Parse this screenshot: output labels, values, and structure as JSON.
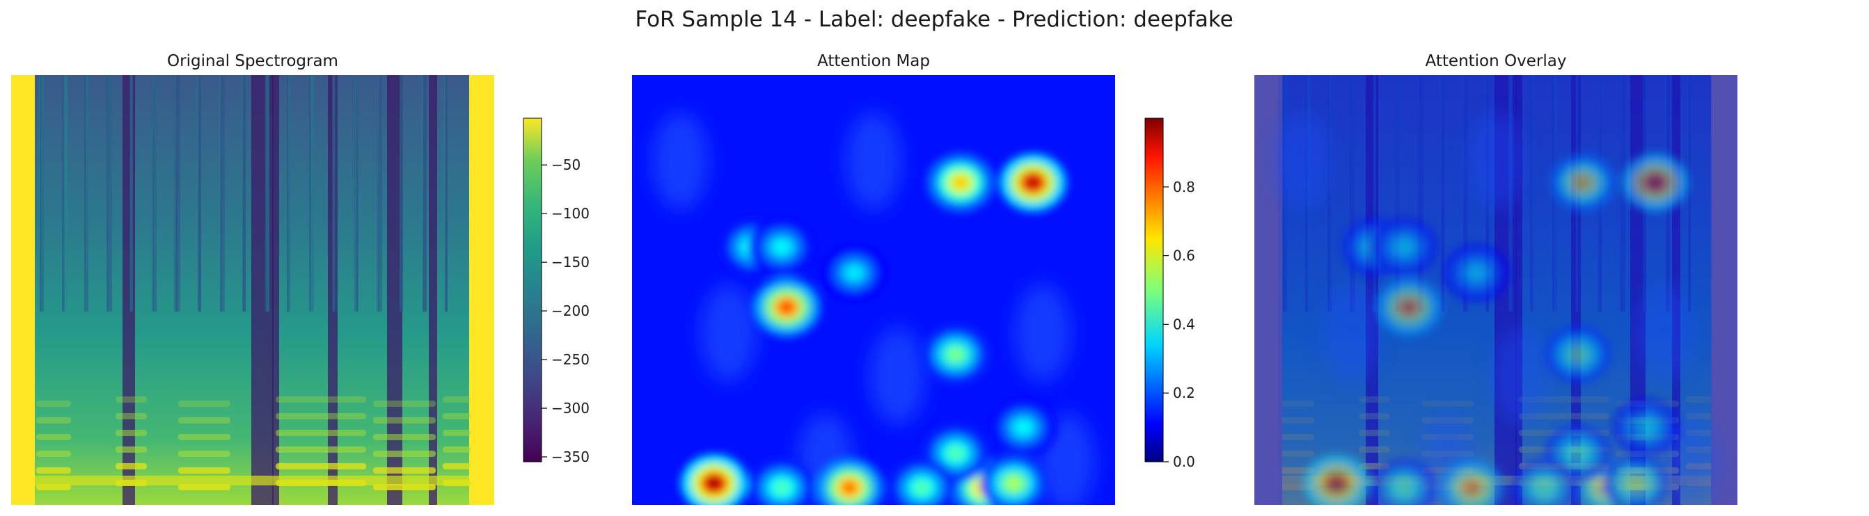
{
  "figure": {
    "suptitle": "FoR Sample 14 - Label: deepfake - Prediction: deepfake"
  },
  "chart_data": [
    {
      "type": "heatmap",
      "title": "Original Spectrogram",
      "colormap": "viridis",
      "colorbar": {
        "range": [
          -355,
          -2
        ],
        "ticks": [
          -50,
          -100,
          -150,
          -200,
          -250,
          -300,
          -350
        ],
        "tick_labels": [
          "−50",
          "−100",
          "−150",
          "−200",
          "−250",
          "−300",
          "−350"
        ]
      },
      "axes_visible": false
    },
    {
      "type": "heatmap",
      "title": "Attention Map",
      "colormap": "jet",
      "colorbar": {
        "range": [
          0.0,
          1.0
        ],
        "ticks": [
          0.0,
          0.2,
          0.4,
          0.6,
          0.8
        ],
        "tick_labels": [
          "0.0",
          "0.2",
          "0.4",
          "0.6",
          "0.8"
        ]
      },
      "axes_visible": false,
      "hotspots": [
        {
          "x": 0.17,
          "y": 0.95,
          "v": 0.98
        },
        {
          "x": 0.45,
          "y": 0.96,
          "v": 0.78
        },
        {
          "x": 0.73,
          "y": 0.96,
          "v": 0.72
        },
        {
          "x": 0.32,
          "y": 0.54,
          "v": 0.82
        },
        {
          "x": 0.68,
          "y": 0.25,
          "v": 0.68
        },
        {
          "x": 0.83,
          "y": 0.25,
          "v": 0.95
        },
        {
          "x": 0.25,
          "y": 0.4,
          "v": 0.42
        },
        {
          "x": 0.31,
          "y": 0.4,
          "v": 0.38
        },
        {
          "x": 0.46,
          "y": 0.46,
          "v": 0.36
        },
        {
          "x": 0.67,
          "y": 0.65,
          "v": 0.5
        },
        {
          "x": 0.67,
          "y": 0.88,
          "v": 0.46
        },
        {
          "x": 0.81,
          "y": 0.82,
          "v": 0.38
        },
        {
          "x": 0.31,
          "y": 0.96,
          "v": 0.45
        },
        {
          "x": 0.6,
          "y": 0.96,
          "v": 0.46
        },
        {
          "x": 0.79,
          "y": 0.95,
          "v": 0.55
        }
      ]
    },
    {
      "type": "heatmap",
      "title": "Attention Overlay",
      "colormap": "jet over viridis",
      "axes_visible": false
    }
  ]
}
